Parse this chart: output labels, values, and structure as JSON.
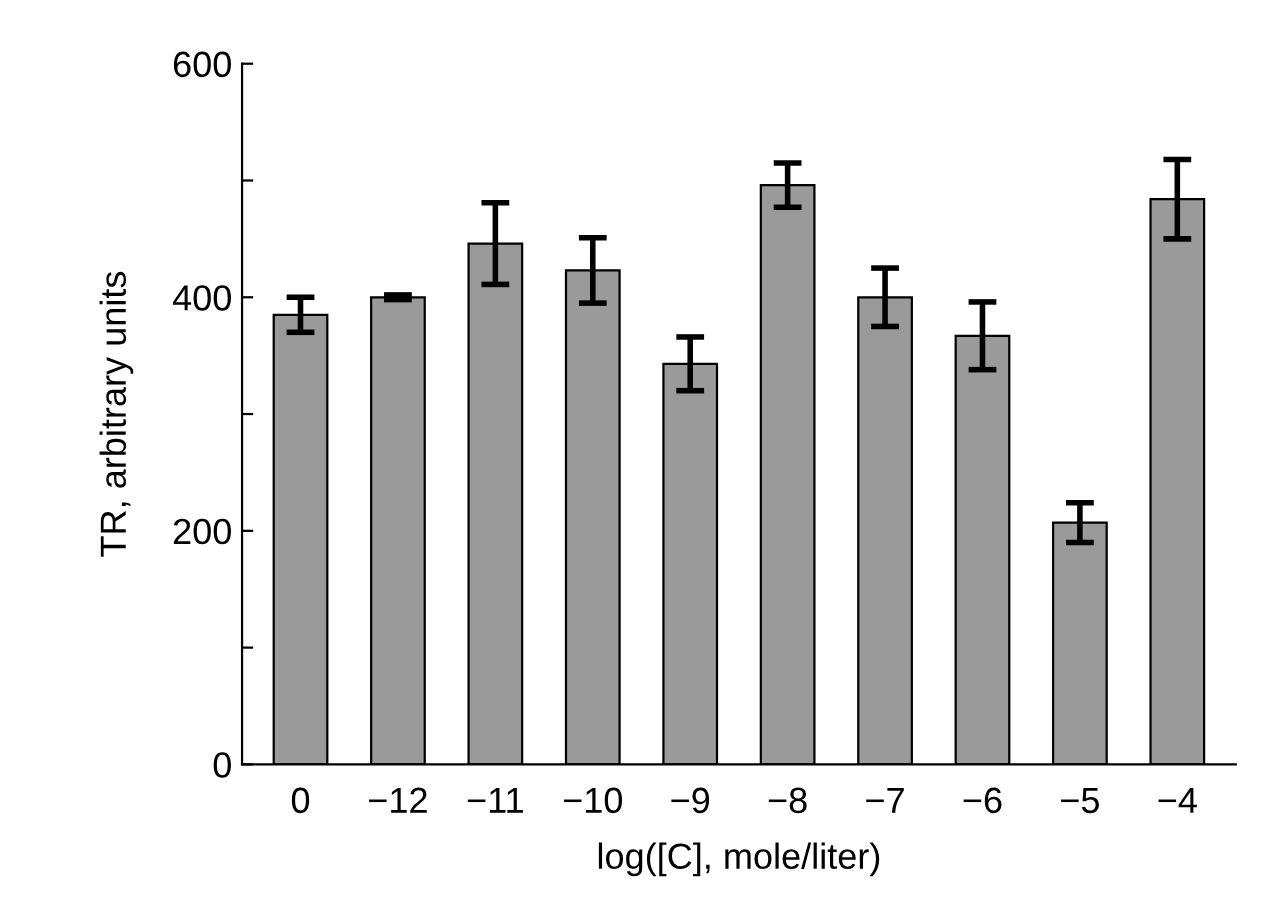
{
  "chart_data": {
    "type": "bar",
    "xlabel": "log([C], mole/liter)",
    "ylabel": "TR, arbitrary units",
    "categories": [
      "0",
      "−12",
      "−11",
      "−10",
      "−9",
      "−8",
      "−7",
      "−6",
      "−5",
      "−4"
    ],
    "values": [
      385,
      400,
      446,
      423,
      343,
      496,
      400,
      367,
      207,
      484
    ],
    "errors": [
      15,
      2,
      35,
      28,
      23,
      19,
      25,
      29,
      17,
      34
    ],
    "color": "#9a9a9a",
    "ylim": [
      0,
      600
    ],
    "yticks": [
      0,
      {
        "value": 100,
        "label": null
      },
      200,
      {
        "value": 300,
        "label": null
      },
      400,
      {
        "value": 500,
        "label": null
      },
      600
    ],
    "grid": false,
    "legend": false
  }
}
